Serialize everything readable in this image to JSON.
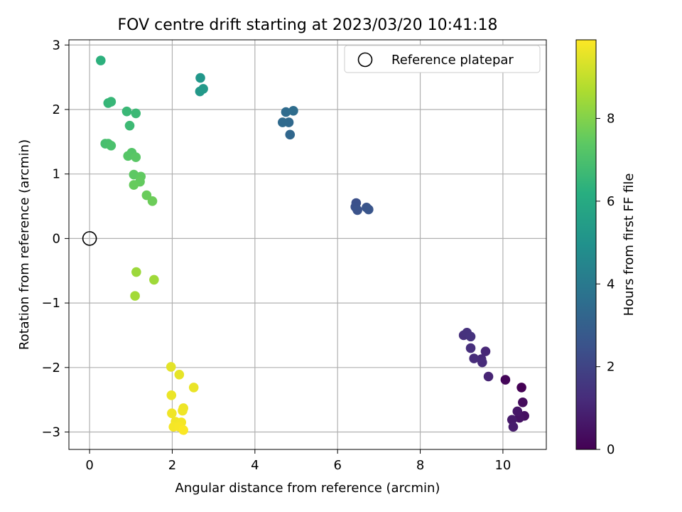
{
  "chart_data": {
    "type": "scatter",
    "title": "FOV centre drift starting at 2023/03/20 10:41:18",
    "xlabel": "Angular distance from reference (arcmin)",
    "ylabel": "Rotation from reference (arcmin)",
    "xlim": [
      -0.5,
      11.05
    ],
    "ylim": [
      -3.27,
      3.08
    ],
    "xticks": [
      0,
      2,
      4,
      6,
      8,
      10
    ],
    "yticks": [
      -3,
      -2,
      -1,
      0,
      1,
      2,
      3
    ],
    "grid": true,
    "legend": {
      "placement": "top-right",
      "entries": [
        "Reference platepar"
      ]
    },
    "reference_point": {
      "x": 0,
      "y": 0
    },
    "colorbar": {
      "label": "Hours from first FF file",
      "range": [
        0,
        9.9
      ],
      "ticks": [
        0,
        2,
        4,
        6,
        8
      ],
      "colormap": "viridis"
    },
    "points": [
      {
        "x": 10.45,
        "y": -2.31,
        "h": 0.0
      },
      {
        "x": 10.06,
        "y": -2.19,
        "h": 0.15
      },
      {
        "x": 10.48,
        "y": -2.54,
        "h": 0.3
      },
      {
        "x": 10.52,
        "y": -2.75,
        "h": 0.4
      },
      {
        "x": 10.4,
        "y": -2.78,
        "h": 0.5
      },
      {
        "x": 10.35,
        "y": -2.68,
        "h": 0.6
      },
      {
        "x": 10.22,
        "y": -2.81,
        "h": 0.7
      },
      {
        "x": 10.25,
        "y": -2.92,
        "h": 0.8
      },
      {
        "x": 9.65,
        "y": -2.14,
        "h": 1.0
      },
      {
        "x": 9.58,
        "y": -1.75,
        "h": 1.1
      },
      {
        "x": 9.48,
        "y": -1.87,
        "h": 1.15
      },
      {
        "x": 9.5,
        "y": -1.92,
        "h": 1.2
      },
      {
        "x": 9.3,
        "y": -1.86,
        "h": 1.25
      },
      {
        "x": 9.22,
        "y": -1.7,
        "h": 1.3
      },
      {
        "x": 9.05,
        "y": -1.5,
        "h": 1.35
      },
      {
        "x": 9.13,
        "y": -1.46,
        "h": 1.4
      },
      {
        "x": 9.22,
        "y": -1.52,
        "h": 1.45
      },
      {
        "x": 6.45,
        "y": 0.55,
        "h": 2.4
      },
      {
        "x": 6.43,
        "y": 0.49,
        "h": 2.45
      },
      {
        "x": 6.48,
        "y": 0.44,
        "h": 2.5
      },
      {
        "x": 6.7,
        "y": 0.48,
        "h": 2.55
      },
      {
        "x": 6.75,
        "y": 0.45,
        "h": 2.6
      },
      {
        "x": 4.85,
        "y": 1.61,
        "h": 3.3
      },
      {
        "x": 4.82,
        "y": 1.8,
        "h": 3.35
      },
      {
        "x": 4.67,
        "y": 1.8,
        "h": 3.4
      },
      {
        "x": 4.75,
        "y": 1.96,
        "h": 3.45
      },
      {
        "x": 4.93,
        "y": 1.98,
        "h": 3.5
      },
      {
        "x": 2.68,
        "y": 2.49,
        "h": 5.2
      },
      {
        "x": 2.67,
        "y": 2.28,
        "h": 5.25
      },
      {
        "x": 2.75,
        "y": 2.32,
        "h": 5.3
      },
      {
        "x": 0.27,
        "y": 2.76,
        "h": 6.3
      },
      {
        "x": 0.45,
        "y": 2.1,
        "h": 6.5
      },
      {
        "x": 0.52,
        "y": 2.12,
        "h": 6.55
      },
      {
        "x": 0.9,
        "y": 1.97,
        "h": 6.6
      },
      {
        "x": 1.12,
        "y": 1.94,
        "h": 6.65
      },
      {
        "x": 0.97,
        "y": 1.75,
        "h": 6.7
      },
      {
        "x": 0.38,
        "y": 1.47,
        "h": 6.9
      },
      {
        "x": 0.45,
        "y": 1.47,
        "h": 6.95
      },
      {
        "x": 0.52,
        "y": 1.44,
        "h": 7.0
      },
      {
        "x": 1.02,
        "y": 1.33,
        "h": 7.2
      },
      {
        "x": 0.93,
        "y": 1.28,
        "h": 7.25
      },
      {
        "x": 1.12,
        "y": 1.26,
        "h": 7.3
      },
      {
        "x": 1.07,
        "y": 0.99,
        "h": 7.4
      },
      {
        "x": 1.24,
        "y": 0.96,
        "h": 7.45
      },
      {
        "x": 1.22,
        "y": 0.88,
        "h": 7.5
      },
      {
        "x": 1.07,
        "y": 0.83,
        "h": 7.55
      },
      {
        "x": 1.38,
        "y": 0.67,
        "h": 7.6
      },
      {
        "x": 1.52,
        "y": 0.58,
        "h": 7.65
      },
      {
        "x": 1.13,
        "y": -0.52,
        "h": 8.4
      },
      {
        "x": 1.56,
        "y": -0.64,
        "h": 8.45
      },
      {
        "x": 1.1,
        "y": -0.89,
        "h": 8.5
      },
      {
        "x": 1.97,
        "y": -1.99,
        "h": 9.5
      },
      {
        "x": 2.17,
        "y": -2.11,
        "h": 9.55
      },
      {
        "x": 2.52,
        "y": -2.31,
        "h": 9.6
      },
      {
        "x": 1.98,
        "y": -2.43,
        "h": 9.62
      },
      {
        "x": 2.27,
        "y": -2.63,
        "h": 9.65
      },
      {
        "x": 2.25,
        "y": -2.67,
        "h": 9.68
      },
      {
        "x": 1.99,
        "y": -2.71,
        "h": 9.7
      },
      {
        "x": 2.08,
        "y": -2.84,
        "h": 9.72
      },
      {
        "x": 2.22,
        "y": -2.85,
        "h": 9.75
      },
      {
        "x": 2.03,
        "y": -2.92,
        "h": 9.78
      },
      {
        "x": 2.17,
        "y": -2.92,
        "h": 9.8
      },
      {
        "x": 2.27,
        "y": -2.97,
        "h": 9.85
      }
    ]
  }
}
